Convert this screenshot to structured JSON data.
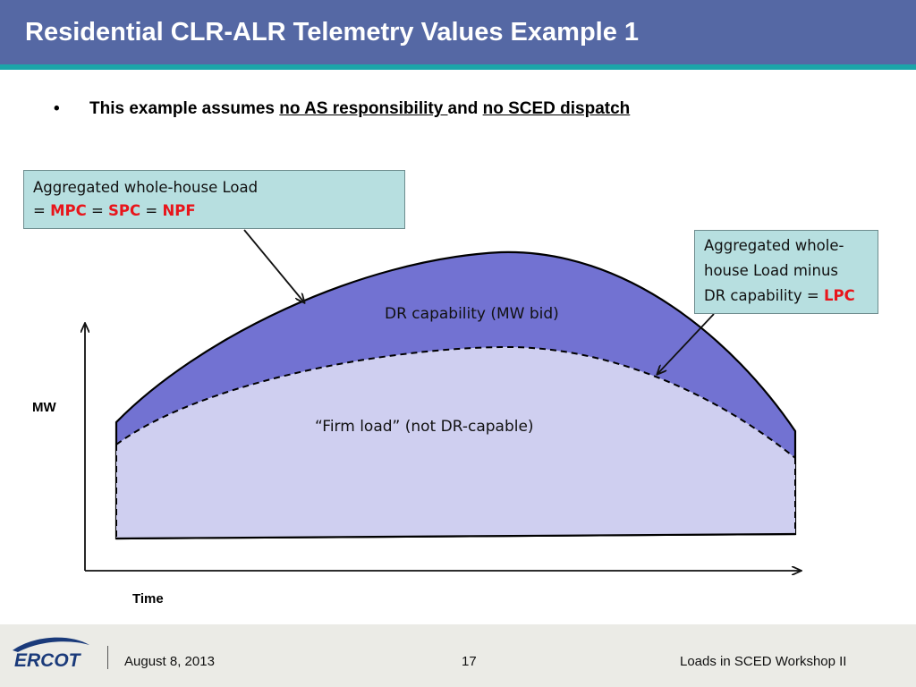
{
  "slide": {
    "title": "Residential CLR-ALR Telemetry Values Example 1",
    "bullet": {
      "marker": "•",
      "prefix": "This example assumes ",
      "link1": "no AS responsibility ",
      "middle": "and ",
      "link2": "no SCED dispatch"
    }
  },
  "callout_left": {
    "line1": "Aggregated whole-house Load",
    "eq1": "= ",
    "term1": "MPC",
    "eq2": " = ",
    "term2": "SPC",
    "eq3": " = ",
    "term3": "NPF"
  },
  "callout_right": {
    "line1": "Aggregated whole-",
    "line2": "house Load minus",
    "line3_prefix": "DR capability = ",
    "term": "LPC"
  },
  "diagram": {
    "dr_label": "DR capability (MW bid)",
    "firm_label": "“Firm load” (not DR-capable)",
    "y_axis_label": "MW",
    "x_axis_label": "Time",
    "colors": {
      "dr_fill": "#7272d2",
      "firm_fill": "#cfcff0",
      "callout_fill": "#b7dfe0",
      "highlight": "#e8151b"
    }
  },
  "footer": {
    "logo_text": "ERCOT",
    "date": "August 8, 2013",
    "page_number": "17",
    "event": "Loads in SCED Workshop II"
  }
}
